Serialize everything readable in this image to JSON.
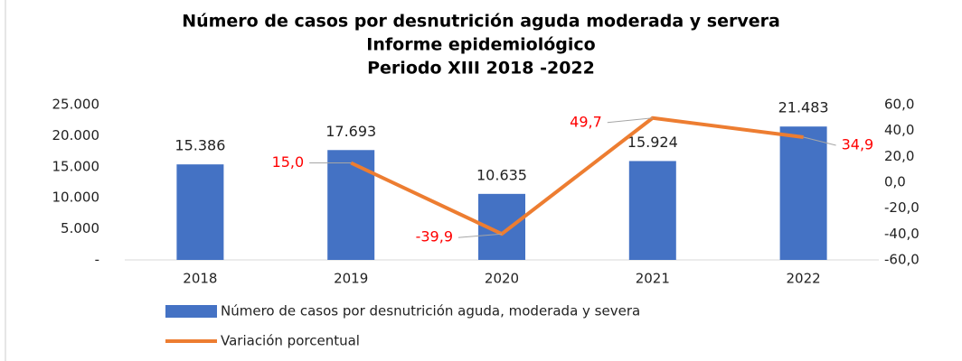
{
  "chart_data": {
    "type": "bar",
    "title": [
      "Número de casos por desnutrición aguda moderada y servera",
      "Informe epidemiológico",
      "Periodo XIII 2018 -2022"
    ],
    "categories": [
      "2018",
      "2019",
      "2020",
      "2021",
      "2022"
    ],
    "series": [
      {
        "name": "Número de casos por desnutrición aguda, moderada y severa",
        "type": "bar",
        "color": "#4472c4",
        "values": [
          15386,
          17693,
          10635,
          15924,
          21483
        ],
        "value_labels": [
          "15.386",
          "17.693",
          "10.635",
          "15.924",
          "21.483"
        ]
      },
      {
        "name": "Variación porcentual",
        "type": "line",
        "axis": "y2",
        "color": "#ed7d31",
        "values": [
          null,
          15.0,
          -39.9,
          49.7,
          34.9
        ],
        "value_labels": [
          null,
          "15,0",
          "-39,9",
          "49,7",
          "34,9"
        ]
      }
    ],
    "ylim": [
      0,
      25000
    ],
    "yticks": [
      {
        "value": 0,
        "label": "-"
      },
      {
        "value": 5000,
        "label": "5.000"
      },
      {
        "value": 10000,
        "label": "10.000"
      },
      {
        "value": 15000,
        "label": "15.000"
      },
      {
        "value": 20000,
        "label": "20.000"
      },
      {
        "value": 25000,
        "label": "25.000"
      }
    ],
    "y2lim": [
      -60,
      60
    ],
    "y2ticks": [
      {
        "value": -60,
        "label": "-60,0"
      },
      {
        "value": -40,
        "label": "-40,0"
      },
      {
        "value": -20,
        "label": "-20,0"
      },
      {
        "value": 0,
        "label": "0,0"
      },
      {
        "value": 20,
        "label": "20,0"
      },
      {
        "value": 40,
        "label": "40,0"
      },
      {
        "value": 60,
        "label": "60,0"
      }
    ],
    "legend": "bottom"
  }
}
